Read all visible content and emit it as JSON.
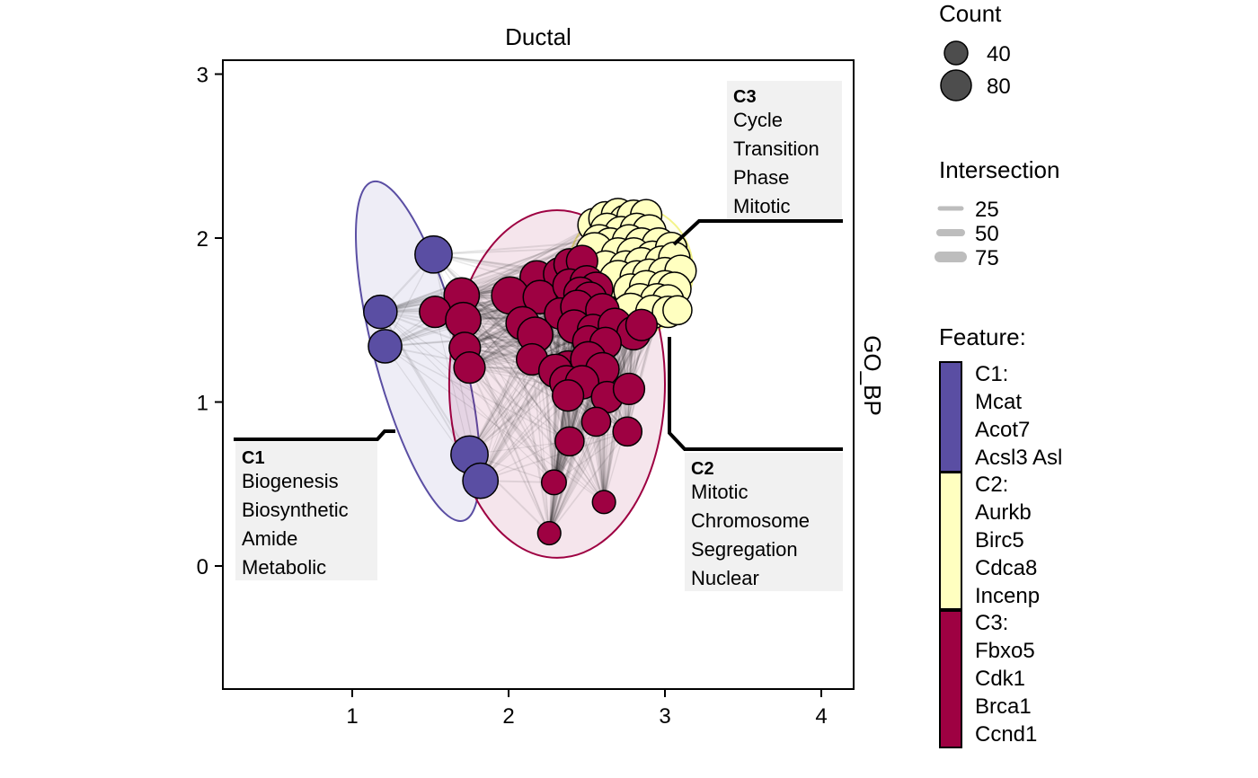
{
  "chart_data": {
    "type": "scatter",
    "title": "Ductal",
    "strip_label": "GO_BP",
    "xlim": [
      0.2,
      4.2
    ],
    "ylim": [
      -0.75,
      3.1
    ],
    "x_ticks": [
      "1",
      "2",
      "3",
      "4"
    ],
    "y_ticks": [
      "0",
      "1",
      "2",
      "3"
    ],
    "grid": false,
    "legend": {
      "placement": "right",
      "count": {
        "title": "Count",
        "labels": [
          "40",
          "80"
        ]
      },
      "intersection": {
        "title": "Intersection",
        "labels": [
          "25",
          "50",
          "75"
        ]
      },
      "feature": {
        "title": "Feature:",
        "entries": [
          {
            "color": "#5a4ea3",
            "lines": [
              "C1:",
              "Mcat",
              "Acot7",
              "Acsl3 Asl"
            ]
          },
          {
            "color": "#ffffc0",
            "lines": [
              "C2:",
              "Aurkb",
              "Birc5",
              "Cdca8",
              "Incenp"
            ]
          },
          {
            "color": "#9e0142",
            "lines": [
              "C3:",
              "Fbxo5",
              "Cdk1",
              "Brca1",
              "Ccnd1"
            ]
          }
        ]
      }
    },
    "colors": {
      "C1": "#5a4ea3",
      "C2": "#ffffc0",
      "C3": "#9e0142"
    },
    "clusters": [
      {
        "id": "C1",
        "label": "C1",
        "terms": [
          "Biogenesis",
          "Biosynthetic",
          "Amide",
          "Metabolic"
        ],
        "ellipse": {
          "cx": 1.42,
          "cy": 1.31,
          "rx": 0.28,
          "ry": 1.07,
          "angle": -15
        },
        "points": [
          {
            "x": 1.52,
            "y": 1.9,
            "count": 80
          },
          {
            "x": 1.18,
            "y": 1.55,
            "count": 60
          },
          {
            "x": 1.21,
            "y": 1.34,
            "count": 60
          },
          {
            "x": 1.75,
            "y": 0.68,
            "count": 80
          },
          {
            "x": 1.82,
            "y": 0.52,
            "count": 70
          }
        ]
      },
      {
        "id": "C2",
        "label": "C2",
        "terms": [
          "Mitotic",
          "Chromosome",
          "Segregation",
          "Nuclear"
        ],
        "ellipse": {
          "cx": 2.78,
          "cy": 1.8,
          "rx": 0.4,
          "ry": 0.4,
          "angle": 0
        },
        "points": [
          {
            "x": 2.55,
            "y": 2.08,
            "count": 60
          },
          {
            "x": 2.62,
            "y": 2.12,
            "count": 60
          },
          {
            "x": 2.7,
            "y": 2.14,
            "count": 60
          },
          {
            "x": 2.75,
            "y": 2.1,
            "count": 60
          },
          {
            "x": 2.8,
            "y": 2.13,
            "count": 60
          },
          {
            "x": 2.88,
            "y": 2.14,
            "count": 50
          },
          {
            "x": 2.63,
            "y": 2.05,
            "count": 60
          },
          {
            "x": 2.72,
            "y": 2.03,
            "count": 60
          },
          {
            "x": 2.82,
            "y": 2.05,
            "count": 60
          },
          {
            "x": 2.9,
            "y": 2.04,
            "count": 60
          },
          {
            "x": 2.58,
            "y": 1.98,
            "count": 60
          },
          {
            "x": 2.65,
            "y": 1.96,
            "count": 60
          },
          {
            "x": 2.77,
            "y": 1.98,
            "count": 60
          },
          {
            "x": 2.85,
            "y": 1.96,
            "count": 60
          },
          {
            "x": 2.96,
            "y": 1.96,
            "count": 60
          },
          {
            "x": 2.55,
            "y": 1.92,
            "count": 80
          },
          {
            "x": 2.7,
            "y": 1.9,
            "count": 60
          },
          {
            "x": 2.8,
            "y": 1.9,
            "count": 60
          },
          {
            "x": 2.92,
            "y": 1.88,
            "count": 60
          },
          {
            "x": 3.04,
            "y": 1.94,
            "count": 50
          },
          {
            "x": 2.62,
            "y": 1.82,
            "count": 60
          },
          {
            "x": 2.75,
            "y": 1.82,
            "count": 60
          },
          {
            "x": 2.85,
            "y": 1.84,
            "count": 60
          },
          {
            "x": 2.98,
            "y": 1.85,
            "count": 60
          },
          {
            "x": 3.06,
            "y": 1.88,
            "count": 50
          },
          {
            "x": 2.7,
            "y": 1.75,
            "count": 80
          },
          {
            "x": 2.82,
            "y": 1.76,
            "count": 60
          },
          {
            "x": 2.9,
            "y": 1.77,
            "count": 60
          },
          {
            "x": 3.0,
            "y": 1.78,
            "count": 60
          },
          {
            "x": 3.1,
            "y": 1.8,
            "count": 50
          },
          {
            "x": 2.78,
            "y": 1.68,
            "count": 60
          },
          {
            "x": 2.88,
            "y": 1.7,
            "count": 60
          },
          {
            "x": 3.0,
            "y": 1.7,
            "count": 60
          },
          {
            "x": 3.06,
            "y": 1.69,
            "count": 60
          },
          {
            "x": 2.84,
            "y": 1.62,
            "count": 60
          },
          {
            "x": 2.95,
            "y": 1.62,
            "count": 60
          },
          {
            "x": 3.02,
            "y": 1.62,
            "count": 50
          },
          {
            "x": 2.78,
            "y": 1.55,
            "count": 80
          },
          {
            "x": 2.92,
            "y": 1.55,
            "count": 60
          },
          {
            "x": 3.02,
            "y": 1.55,
            "count": 50
          },
          {
            "x": 3.08,
            "y": 1.56,
            "count": 40
          }
        ]
      },
      {
        "id": "C3",
        "label": "C3",
        "terms": [
          "Cycle",
          "Transition",
          "Phase",
          "Mitotic"
        ],
        "ellipse": {
          "cx": 2.31,
          "cy": 1.11,
          "rx": 0.69,
          "ry": 1.06,
          "angle": 0
        },
        "points": [
          {
            "x": 2.18,
            "y": 1.76,
            "count": 60
          },
          {
            "x": 2.33,
            "y": 1.78,
            "count": 60
          },
          {
            "x": 2.39,
            "y": 1.84,
            "count": 50
          },
          {
            "x": 2.47,
            "y": 1.86,
            "count": 50
          },
          {
            "x": 2.01,
            "y": 1.65,
            "count": 80
          },
          {
            "x": 2.2,
            "y": 1.64,
            "count": 60
          },
          {
            "x": 2.39,
            "y": 1.71,
            "count": 60
          },
          {
            "x": 2.5,
            "y": 1.73,
            "count": 60
          },
          {
            "x": 2.56,
            "y": 1.69,
            "count": 60
          },
          {
            "x": 2.46,
            "y": 1.66,
            "count": 60
          },
          {
            "x": 2.52,
            "y": 1.63,
            "count": 60
          },
          {
            "x": 1.7,
            "y": 1.65,
            "count": 70
          },
          {
            "x": 1.53,
            "y": 1.55,
            "count": 50
          },
          {
            "x": 1.71,
            "y": 1.5,
            "count": 70
          },
          {
            "x": 2.33,
            "y": 1.54,
            "count": 50
          },
          {
            "x": 2.44,
            "y": 1.58,
            "count": 60
          },
          {
            "x": 2.6,
            "y": 1.56,
            "count": 60
          },
          {
            "x": 2.09,
            "y": 1.48,
            "count": 60
          },
          {
            "x": 2.17,
            "y": 1.41,
            "count": 70
          },
          {
            "x": 2.42,
            "y": 1.46,
            "count": 60
          },
          {
            "x": 2.54,
            "y": 1.44,
            "count": 50
          },
          {
            "x": 2.68,
            "y": 1.47,
            "count": 60
          },
          {
            "x": 2.8,
            "y": 1.42,
            "count": 60
          },
          {
            "x": 2.85,
            "y": 1.47,
            "count": 50
          },
          {
            "x": 1.72,
            "y": 1.33,
            "count": 50
          },
          {
            "x": 2.51,
            "y": 1.37,
            "count": 50
          },
          {
            "x": 2.62,
            "y": 1.36,
            "count": 50
          },
          {
            "x": 1.75,
            "y": 1.21,
            "count": 50
          },
          {
            "x": 2.15,
            "y": 1.26,
            "count": 50
          },
          {
            "x": 2.38,
            "y": 1.21,
            "count": 60
          },
          {
            "x": 2.51,
            "y": 1.26,
            "count": 70
          },
          {
            "x": 2.6,
            "y": 1.2,
            "count": 60
          },
          {
            "x": 2.3,
            "y": 1.19,
            "count": 60
          },
          {
            "x": 2.37,
            "y": 1.12,
            "count": 60
          },
          {
            "x": 2.47,
            "y": 1.12,
            "count": 60
          },
          {
            "x": 2.38,
            "y": 1.04,
            "count": 50
          },
          {
            "x": 2.63,
            "y": 1.03,
            "count": 50
          },
          {
            "x": 2.77,
            "y": 1.08,
            "count": 50
          },
          {
            "x": 2.56,
            "y": 0.88,
            "count": 40
          },
          {
            "x": 2.76,
            "y": 0.82,
            "count": 40
          },
          {
            "x": 2.39,
            "y": 0.76,
            "count": 40
          },
          {
            "x": 2.29,
            "y": 0.51,
            "count": 25
          },
          {
            "x": 2.61,
            "y": 0.39,
            "count": 20
          },
          {
            "x": 2.26,
            "y": 0.2,
            "count": 20
          }
        ]
      }
    ]
  }
}
